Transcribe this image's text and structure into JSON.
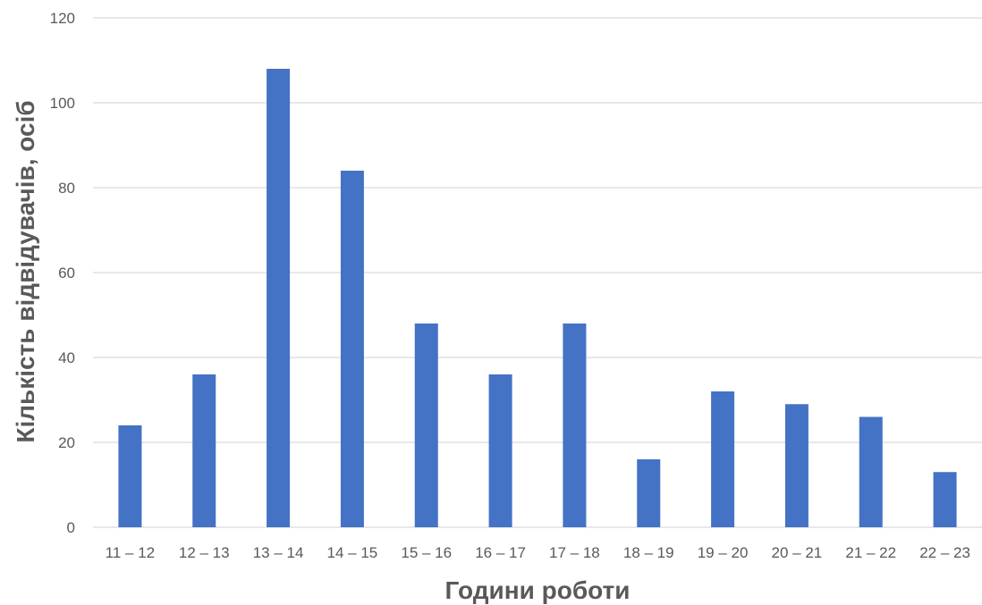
{
  "chart_data": {
    "type": "bar",
    "categories": [
      "11 – 12",
      "12 – 13",
      "13 – 14",
      "14 – 15",
      "15 – 16",
      "16 – 17",
      "17 – 18",
      "18 – 19",
      "19 – 20",
      "20 – 21",
      "21 – 22",
      "22 – 23"
    ],
    "values": [
      24,
      36,
      108,
      84,
      48,
      36,
      48,
      16,
      32,
      29,
      26,
      13
    ],
    "xlabel": "Години роботи",
    "ylabel": "Кількість відвідувачів, осіб",
    "ylim": [
      0,
      120
    ],
    "yticks": [
      0,
      20,
      40,
      60,
      80,
      100,
      120
    ],
    "grid": true,
    "legend": false,
    "bar_color": "#4472c4"
  }
}
